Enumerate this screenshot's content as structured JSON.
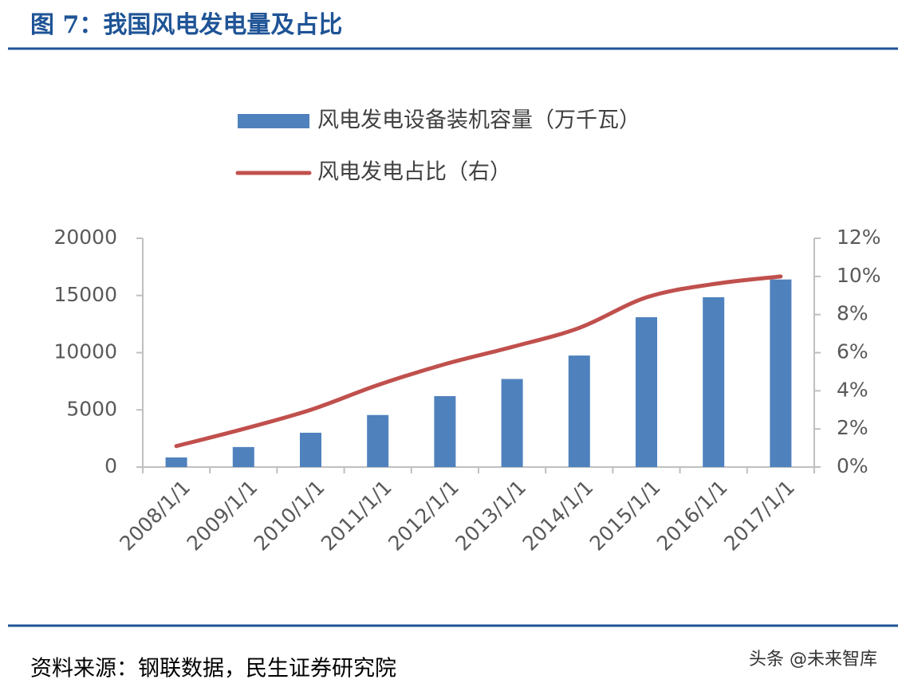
{
  "title": "图 7：我国风电发电量及占比",
  "source": "资料来源：钢联数据，民生证券研究院",
  "watermark": "头条 @未来智库",
  "chart_data": {
    "type": "bar-line",
    "categories": [
      "2008/1/1",
      "2009/1/1",
      "2010/1/1",
      "2011/1/1",
      "2012/1/1",
      "2013/1/1",
      "2014/1/1",
      "2015/1/1",
      "2016/1/1",
      "2017/1/1"
    ],
    "series": [
      {
        "name": "风电发电设备装机容量（万千瓦）",
        "type": "bar",
        "color": "#4f81bd",
        "values": [
          840,
          1750,
          3000,
          4550,
          6200,
          7700,
          9750,
          13100,
          14850,
          16400
        ]
      },
      {
        "name": "风电发电占比（右）",
        "type": "line",
        "axis": "y2",
        "color": "#c0504d",
        "values": [
          1.1,
          2.0,
          3.0,
          4.3,
          5.4,
          6.3,
          7.3,
          8.9,
          9.6,
          10.0
        ]
      }
    ],
    "ylim": [
      0,
      20000
    ],
    "yticks": [
      0,
      5000,
      10000,
      15000,
      20000
    ],
    "y2lim": [
      0,
      12
    ],
    "y2ticks": [
      {
        "value": 0,
        "label": "0%"
      },
      {
        "value": 2,
        "label": "2%"
      },
      {
        "value": 4,
        "label": "4%"
      },
      {
        "value": 6,
        "label": "6%"
      },
      {
        "value": 8,
        "label": "8%"
      },
      {
        "value": 10,
        "label": "10%"
      },
      {
        "value": 12,
        "label": "12%"
      }
    ],
    "grid": false,
    "legend": "top"
  }
}
